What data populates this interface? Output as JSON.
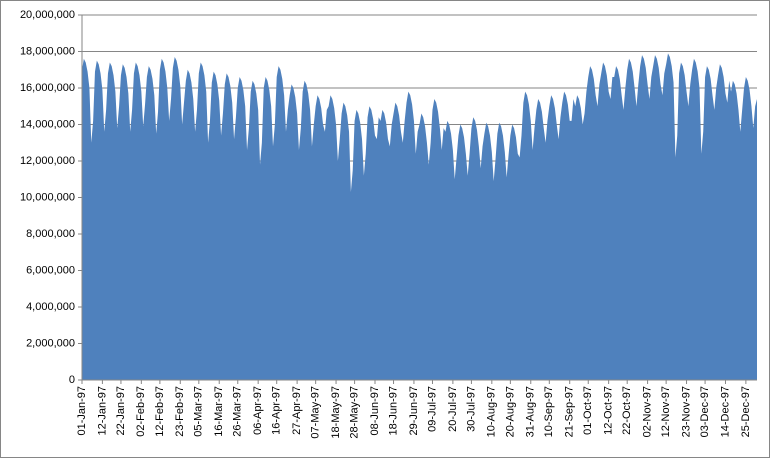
{
  "chart_data": {
    "type": "area",
    "color": "#4f81bd",
    "grid": true,
    "ylim": [
      0,
      20000000
    ],
    "yticks": [
      0,
      {
        "value": 2000000,
        "label": "2,000,000"
      },
      {
        "value": 4000000,
        "label": "4,000,000"
      },
      {
        "value": 6000000,
        "label": "6,000,000"
      },
      {
        "value": 8000000,
        "label": "8,000,000"
      },
      {
        "value": 10000000,
        "label": "10,000,000"
      },
      {
        "value": 12000000,
        "label": "12,000,000"
      },
      {
        "value": 14000000,
        "label": "14,000,000"
      },
      {
        "value": 16000000,
        "label": "16,000,000"
      },
      {
        "value": 18000000,
        "label": "18,000,000"
      },
      {
        "value": 20000000,
        "label": "20,000,000"
      }
    ],
    "categories": [
      "01-Jan-97",
      null,
      null,
      null,
      null,
      null,
      null,
      null,
      null,
      null,
      null,
      "12-Jan-97",
      null,
      null,
      null,
      null,
      null,
      null,
      null,
      null,
      null,
      "22-Jan-97",
      null,
      null,
      null,
      null,
      null,
      null,
      null,
      null,
      null,
      null,
      "02-Feb-97",
      null,
      null,
      null,
      null,
      null,
      null,
      null,
      null,
      null,
      "12-Feb-97",
      null,
      null,
      null,
      null,
      null,
      null,
      null,
      null,
      null,
      null,
      "23-Feb-97",
      null,
      null,
      null,
      null,
      null,
      null,
      null,
      null,
      null,
      "05-Mar-97",
      null,
      null,
      null,
      null,
      null,
      null,
      null,
      null,
      null,
      null,
      "16-Mar-97",
      null,
      null,
      null,
      null,
      null,
      null,
      null,
      null,
      null,
      "26-Mar-97",
      null,
      null,
      null,
      null,
      null,
      null,
      null,
      null,
      null,
      null,
      "06-Apr-97",
      null,
      null,
      null,
      null,
      null,
      null,
      null,
      null,
      null,
      "16-Apr-97",
      null,
      null,
      null,
      null,
      null,
      null,
      null,
      null,
      null,
      null,
      "27-Apr-97",
      null,
      null,
      null,
      null,
      null,
      null,
      null,
      null,
      null,
      "07-May-97",
      null,
      null,
      null,
      null,
      null,
      null,
      null,
      null,
      null,
      null,
      "18-May-97",
      null,
      null,
      null,
      null,
      null,
      null,
      null,
      null,
      null,
      "28-May-97",
      null,
      null,
      null,
      null,
      null,
      null,
      null,
      null,
      null,
      null,
      "08-Jun-97",
      null,
      null,
      null,
      null,
      null,
      null,
      null,
      null,
      null,
      "18-Jun-97",
      null,
      null,
      null,
      null,
      null,
      null,
      null,
      null,
      null,
      null,
      "29-Jun-97",
      null,
      null,
      null,
      null,
      null,
      null,
      null,
      null,
      null,
      "09-Jul-97",
      null,
      null,
      null,
      null,
      null,
      null,
      null,
      null,
      null,
      null,
      "20-Jul-97",
      null,
      null,
      null,
      null,
      null,
      null,
      null,
      null,
      null,
      "30-Jul-97",
      null,
      null,
      null,
      null,
      null,
      null,
      null,
      null,
      null,
      null,
      "10-Aug-97",
      null,
      null,
      null,
      null,
      null,
      null,
      null,
      null,
      null,
      "20-Aug-97",
      null,
      null,
      null,
      null,
      null,
      null,
      null,
      null,
      null,
      null,
      "31-Aug-97",
      null,
      null,
      null,
      null,
      null,
      null,
      null,
      null,
      null,
      "10-Sep-97",
      null,
      null,
      null,
      null,
      null,
      null,
      null,
      null,
      null,
      null,
      "21-Sep-97",
      null,
      null,
      null,
      null,
      null,
      null,
      null,
      null,
      null,
      "01-Oct-97",
      null,
      null,
      null,
      null,
      null,
      null,
      null,
      null,
      null,
      null,
      "12-Oct-97",
      null,
      null,
      null,
      null,
      null,
      null,
      null,
      null,
      null,
      "22-Oct-97",
      null,
      null,
      null,
      null,
      null,
      null,
      null,
      null,
      null,
      null,
      "02-Nov-97",
      null,
      null,
      null,
      null,
      null,
      null,
      null,
      null,
      null,
      "12-Nov-97",
      null,
      null,
      null,
      null,
      null,
      null,
      null,
      null,
      null,
      null,
      "23-Nov-97",
      null,
      null,
      null,
      null,
      null,
      null,
      null,
      null,
      null,
      "03-Dec-97",
      null,
      null,
      null,
      null,
      null,
      null,
      null,
      null,
      null,
      null,
      "14-Dec-97",
      null,
      null,
      null,
      null,
      null,
      null,
      null,
      null,
      null,
      null,
      "25-Dec-97",
      null,
      null,
      null,
      null,
      null,
      null
    ],
    "values": [
      17000000,
      17600000,
      17400000,
      16900000,
      16000000,
      13000000,
      14200000,
      16900000,
      17500000,
      17300000,
      16800000,
      15900000,
      13600000,
      14800000,
      16800000,
      17400000,
      17200000,
      16700000,
      15800000,
      13800000,
      15000000,
      16700000,
      17300000,
      17100000,
      16600000,
      15700000,
      13600000,
      14800000,
      16800000,
      17400000,
      17200000,
      16700000,
      15800000,
      13900000,
      15100000,
      16600000,
      17200000,
      17000000,
      16500000,
      15600000,
      13500000,
      14700000,
      17000000,
      17600000,
      17400000,
      16900000,
      16000000,
      14200000,
      15400000,
      17100000,
      17700000,
      17500000,
      17000000,
      16100000,
      14000000,
      15200000,
      16400000,
      17000000,
      16800000,
      16300000,
      15400000,
      13600000,
      14800000,
      16800000,
      17400000,
      17200000,
      16700000,
      15800000,
      13000000,
      14200000,
      16300000,
      16900000,
      16700000,
      16200000,
      15300000,
      13400000,
      14600000,
      16200000,
      16800000,
      16600000,
      16100000,
      15200000,
      13200000,
      14400000,
      16000000,
      16600000,
      16400000,
      15900000,
      15000000,
      12600000,
      13800000,
      15800000,
      16400000,
      16200000,
      15700000,
      14800000,
      11800000,
      13000000,
      16000000,
      16600000,
      16400000,
      15900000,
      15000000,
      12800000,
      14000000,
      16600000,
      17200000,
      17000000,
      16500000,
      15600000,
      13600000,
      14800000,
      15600000,
      16200000,
      16000000,
      15500000,
      14600000,
      12600000,
      13800000,
      15800000,
      16400000,
      16200000,
      15700000,
      14800000,
      12800000,
      14000000,
      15000000,
      15600000,
      15400000,
      14900000,
      14000000,
      13600000,
      14800000,
      15000000,
      15600000,
      15400000,
      14900000,
      14000000,
      12000000,
      13200000,
      14600000,
      15200000,
      15000000,
      14500000,
      13600000,
      10300000,
      11500000,
      14200000,
      14800000,
      14600000,
      14100000,
      13200000,
      11200000,
      12400000,
      14400000,
      15000000,
      14800000,
      14300000,
      13400000,
      13200000,
      14400000,
      14200000,
      14800000,
      14600000,
      14100000,
      13200000,
      12800000,
      14000000,
      14600000,
      15200000,
      15000000,
      14500000,
      13600000,
      13000000,
      14200000,
      15200000,
      15800000,
      15600000,
      15100000,
      14200000,
      12400000,
      13600000,
      14000000,
      14600000,
      14400000,
      13900000,
      13000000,
      11800000,
      13000000,
      14800000,
      15400000,
      15200000,
      14700000,
      13800000,
      12600000,
      13800000,
      13600000,
      14200000,
      14000000,
      13500000,
      12600000,
      11000000,
      12200000,
      13400000,
      14000000,
      13800000,
      13300000,
      12400000,
      11200000,
      12400000,
      13800000,
      14400000,
      14200000,
      13700000,
      12800000,
      11600000,
      12800000,
      13500000,
      14100000,
      13900000,
      13400000,
      12500000,
      10900000,
      12100000,
      13500000,
      14100000,
      13900000,
      13400000,
      12500000,
      11100000,
      12300000,
      13400000,
      14000000,
      13800000,
      13300000,
      12400000,
      12200000,
      13400000,
      15200000,
      15800000,
      15600000,
      15100000,
      14200000,
      12600000,
      13800000,
      14800000,
      15400000,
      15200000,
      14700000,
      13800000,
      13000000,
      14200000,
      15000000,
      15600000,
      15400000,
      14900000,
      14000000,
      13200000,
      14400000,
      15200000,
      15800000,
      15600000,
      15100000,
      14200000,
      14200000,
      15400000,
      15000000,
      15600000,
      15400000,
      14900000,
      14000000,
      14600000,
      15800000,
      16600000,
      17200000,
      17000000,
      16500000,
      15600000,
      15000000,
      16200000,
      16800000,
      17400000,
      17200000,
      16700000,
      15800000,
      15400000,
      16600000,
      16600000,
      17200000,
      17000000,
      16500000,
      15600000,
      14800000,
      16000000,
      17000000,
      17600000,
      17400000,
      16900000,
      16000000,
      15000000,
      16200000,
      17200000,
      17800000,
      17600000,
      17100000,
      16200000,
      15400000,
      16600000,
      17200000,
      17800000,
      17600000,
      17100000,
      16200000,
      15600000,
      16800000,
      17300000,
      17900000,
      17700000,
      17200000,
      16300000,
      12200000,
      13400000,
      16800000,
      17400000,
      17200000,
      16700000,
      15800000,
      15000000,
      16200000,
      17000000,
      17600000,
      17400000,
      16900000,
      16000000,
      12400000,
      13600000,
      16600000,
      17200000,
      17000000,
      16500000,
      15600000,
      14800000,
      16000000,
      16700000,
      17300000,
      17100000,
      16600000,
      15700000,
      15200000,
      16400000,
      15800000,
      16400000,
      16200000,
      15700000,
      14800000,
      13600000,
      14800000,
      16000000,
      16600000,
      16400000,
      15900000,
      15000000,
      13800000,
      15000000,
      15400000
    ]
  }
}
